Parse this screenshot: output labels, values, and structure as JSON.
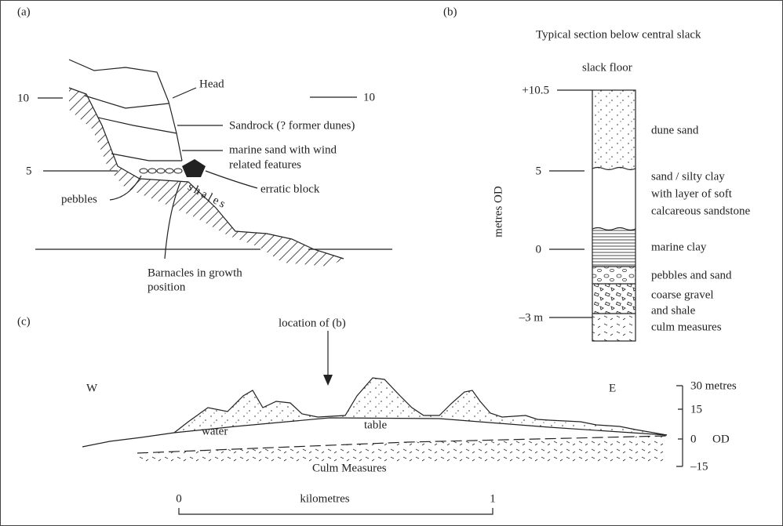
{
  "panel_a": {
    "label": "(a)",
    "height_left_10": "10",
    "height_right_10": "10",
    "height_left_5": "5",
    "head": "Head",
    "sandrock": "Sandrock (? former dunes)",
    "marine_sand": [
      "marine sand with wind",
      "related features"
    ],
    "erratic_block": "erratic block",
    "pebbles": "pebbles",
    "shales": "shales",
    "barnacles": [
      "Barnacles in growth",
      "position"
    ]
  },
  "panel_b": {
    "label": "(b)",
    "title": "Typical section below central slack",
    "slack_floor": "slack floor",
    "axis_label": "metres OD",
    "ticks": [
      "+10.5",
      "5",
      "0",
      "–3 m"
    ],
    "layers": [
      "dune sand",
      "sand / silty clay",
      "with layer of soft",
      "calcareous sandstone",
      "marine clay",
      "pebbles and sand",
      "coarse gravel",
      "and shale",
      "culm measures"
    ]
  },
  "panel_c": {
    "label": "(c)",
    "location": "location of (b)",
    "west": "W",
    "east": "E",
    "scale_ticks": [
      "30 metres",
      "15",
      "0",
      "–15"
    ],
    "datum": "OD",
    "water_table": [
      "water",
      "table"
    ],
    "culm": "Culm Measures",
    "distance": [
      "0",
      "kilometres",
      "1"
    ]
  }
}
